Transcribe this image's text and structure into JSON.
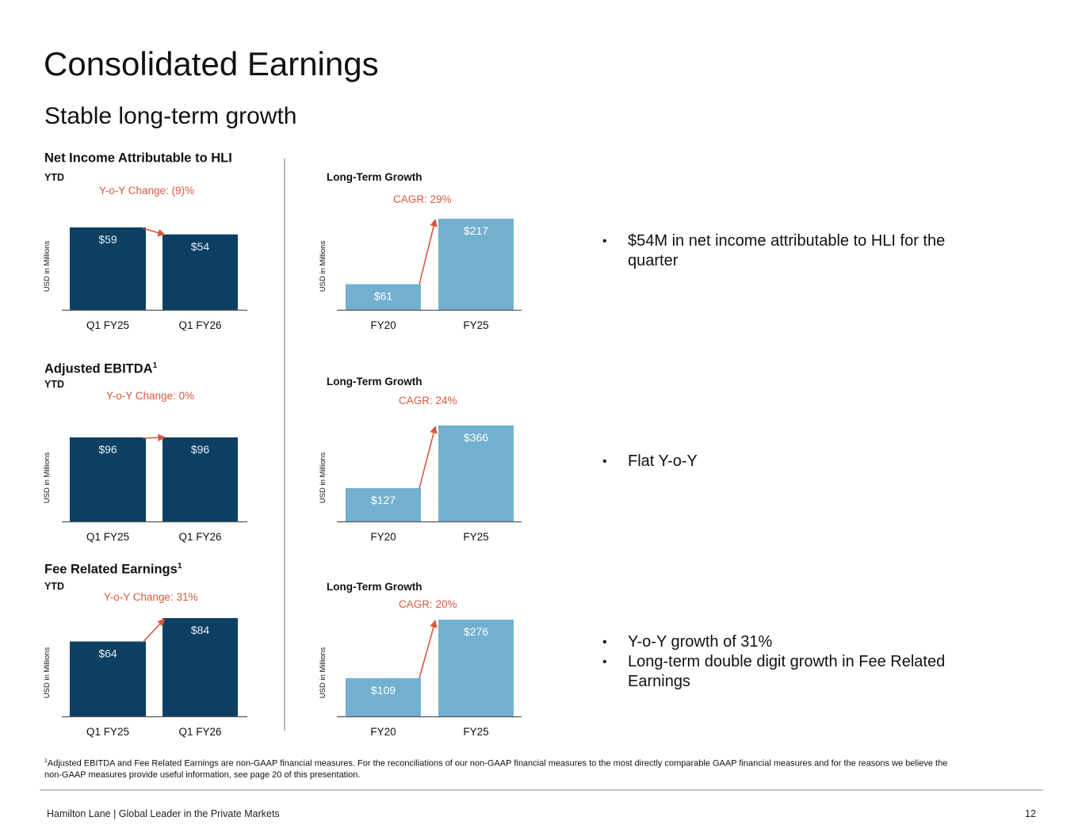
{
  "title": "Consolidated Earnings",
  "subtitle": "Stable long-term growth",
  "colors": {
    "dark_bar": "#0b4063",
    "light_bar": "#72b0cf",
    "accent": "#d9573f",
    "bar_text_dark": "#e6eef5",
    "bar_text_light": "#ffffff"
  },
  "sections": [
    {
      "title": "Net Income Attributable to HLI",
      "footnote_mark": "",
      "period": "YTD",
      "yoy_label": "Y-o-Y Change: (9)%",
      "ltg_label": "Long-Term Growth",
      "cagr_label": "CAGR: 29%",
      "bullets": [
        "$54M in net income attributable to HLI for the quarter"
      ]
    },
    {
      "title": "Adjusted EBITDA",
      "footnote_mark": "1",
      "period": "YTD",
      "yoy_label": "Y-o-Y Change: 0%",
      "ltg_label": "Long-Term Growth",
      "cagr_label": "CAGR: 24%",
      "bullets": [
        "Flat Y-o-Y"
      ]
    },
    {
      "title": "Fee Related Earnings",
      "footnote_mark": "1",
      "period": "YTD",
      "yoy_label": "Y-o-Y Change: 31%",
      "ltg_label": "Long-Term Growth",
      "cagr_label": "CAGR: 20%",
      "bullets": [
        "Y-o-Y growth of 31%",
        "Long-term double digit growth in Fee Related Earnings"
      ]
    }
  ],
  "chart_data": [
    {
      "type": "bar",
      "title": "Net Income Attributable to HLI – YTD",
      "ylabel": "USD in Millions",
      "categories": [
        "Q1 FY25",
        "Q1 FY26"
      ],
      "values": [
        59,
        54
      ],
      "labels": [
        "$59",
        "$54"
      ],
      "ylim": [
        0,
        59
      ]
    },
    {
      "type": "bar",
      "title": "Net Income Attributable to HLI – Long-Term Growth",
      "ylabel": "USD in Millions",
      "categories": [
        "FY20",
        "FY25"
      ],
      "values": [
        61,
        217
      ],
      "labels": [
        "$61",
        "$217"
      ],
      "ylim": [
        0,
        217
      ]
    },
    {
      "type": "bar",
      "title": "Adjusted EBITDA – YTD",
      "ylabel": "USD in Millions",
      "categories": [
        "Q1 FY25",
        "Q1 FY26"
      ],
      "values": [
        96,
        96
      ],
      "labels": [
        "$96",
        "$96"
      ],
      "ylim": [
        0,
        96
      ]
    },
    {
      "type": "bar",
      "title": "Adjusted EBITDA – Long-Term Growth",
      "ylabel": "USD in Millions",
      "categories": [
        "FY20",
        "FY25"
      ],
      "values": [
        127,
        366
      ],
      "labels": [
        "$127",
        "$366"
      ],
      "ylim": [
        0,
        366
      ]
    },
    {
      "type": "bar",
      "title": "Fee Related Earnings – YTD",
      "ylabel": "USD in Millions",
      "categories": [
        "Q1 FY25",
        "Q1 FY26"
      ],
      "values": [
        64,
        84
      ],
      "labels": [
        "$64",
        "$84"
      ],
      "ylim": [
        0,
        84
      ]
    },
    {
      "type": "bar",
      "title": "Fee Related Earnings – Long-Term Growth",
      "ylabel": "USD in Millions",
      "categories": [
        "FY20",
        "FY25"
      ],
      "values": [
        109,
        276
      ],
      "labels": [
        "$109",
        "$276"
      ],
      "ylim": [
        0,
        276
      ]
    }
  ],
  "footnote": {
    "mark": "1",
    "text": "Adjusted EBITDA and Fee Related Earnings are non-GAAP financial measures. For the reconciliations of our non-GAAP financial measures to the most directly comparable GAAP financial measures and for the reasons we believe the non-GAAP measures provide useful information, see page 20 of this presentation."
  },
  "footer": {
    "left": "Hamilton Lane  |  Global Leader in the Private Markets",
    "page": "12"
  }
}
